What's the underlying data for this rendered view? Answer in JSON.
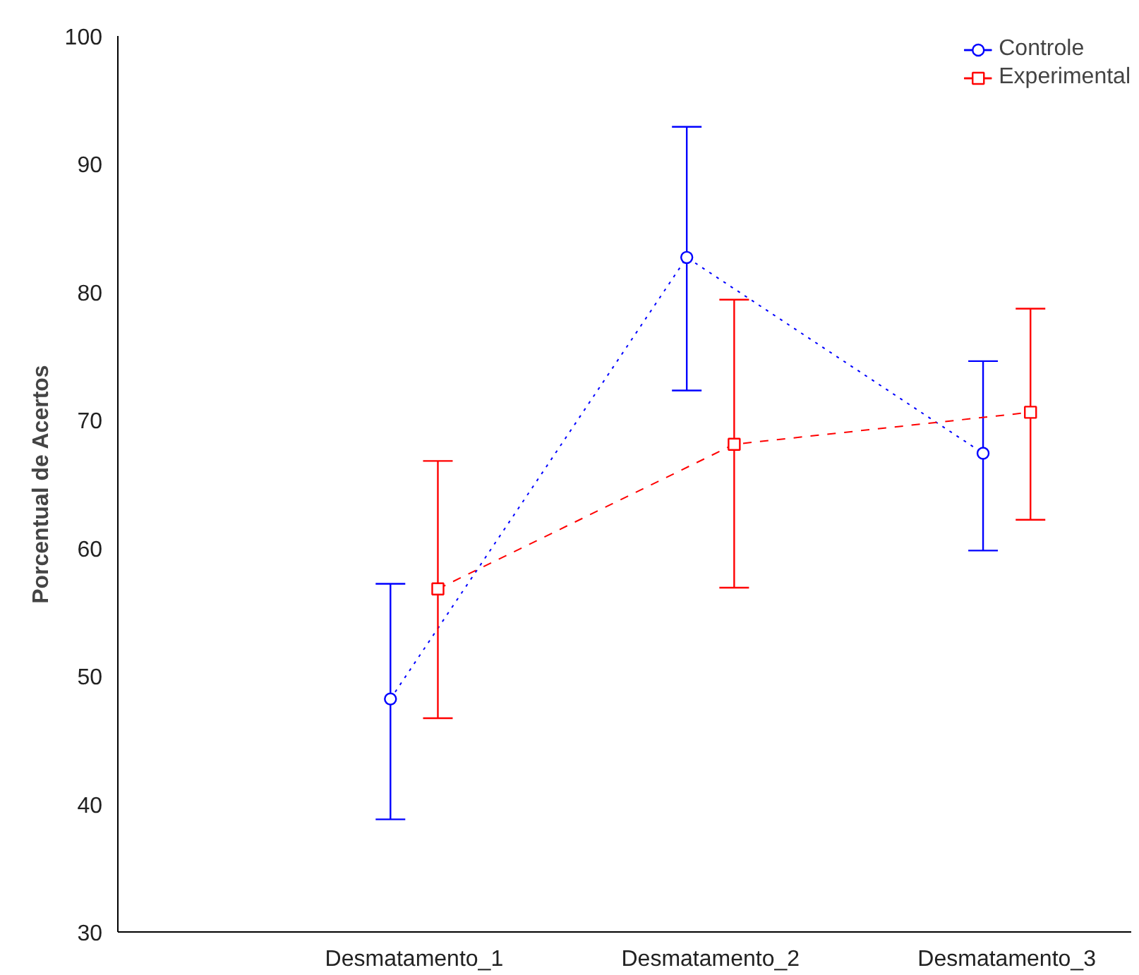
{
  "chart_data": {
    "type": "line",
    "ylabel": "Porcentual de Acertos",
    "categories": [
      "Desmatamento_1",
      "Desmatamento_2",
      "Desmatamento_3"
    ],
    "series": [
      {
        "name": "Controle",
        "color": "#0000ff",
        "values": [
          48.2,
          82.7,
          67.4
        ],
        "errors": [
          [
            38.8,
            57.2
          ],
          [
            72.3,
            92.9
          ],
          [
            59.8,
            74.6
          ]
        ],
        "marker": "circle",
        "line_style": "dotted"
      },
      {
        "name": "Experimental",
        "color": "#ff0000",
        "values": [
          56.8,
          68.1,
          70.6
        ],
        "errors": [
          [
            46.7,
            66.8
          ],
          [
            56.9,
            79.4
          ],
          [
            62.2,
            78.7
          ]
        ],
        "marker": "square",
        "line_style": "dashed"
      }
    ],
    "ylim": [
      30,
      100
    ],
    "yticks": [
      30,
      40,
      50,
      60,
      70,
      80,
      90,
      100
    ],
    "grid": false,
    "legend": "top right"
  }
}
